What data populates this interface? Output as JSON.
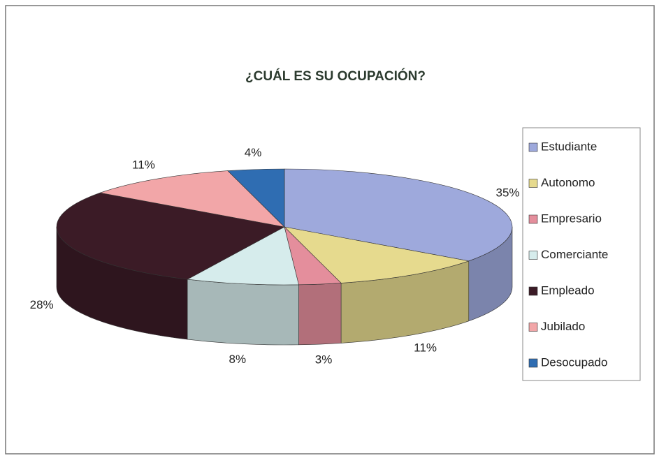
{
  "chart_data": {
    "type": "pie",
    "title": "¿CUÁL ES SU OCUPACIÓN?",
    "categories": [
      "Estudiante",
      "Autonomo",
      "Empresario",
      "Comerciante",
      "Empleado",
      "Jubilado",
      "Desocupado"
    ],
    "values": [
      35,
      11,
      3,
      8,
      28,
      11,
      4
    ],
    "value_labels": [
      "35%",
      "11%",
      "3%",
      "8%",
      "28%",
      "11%",
      "4%"
    ],
    "colors": [
      "#9ea9dc",
      "#e6da8e",
      "#e48e9c",
      "#d6ecec",
      "#3b1b26",
      "#f2a6a8",
      "#2f6db2"
    ],
    "legend": "right"
  }
}
